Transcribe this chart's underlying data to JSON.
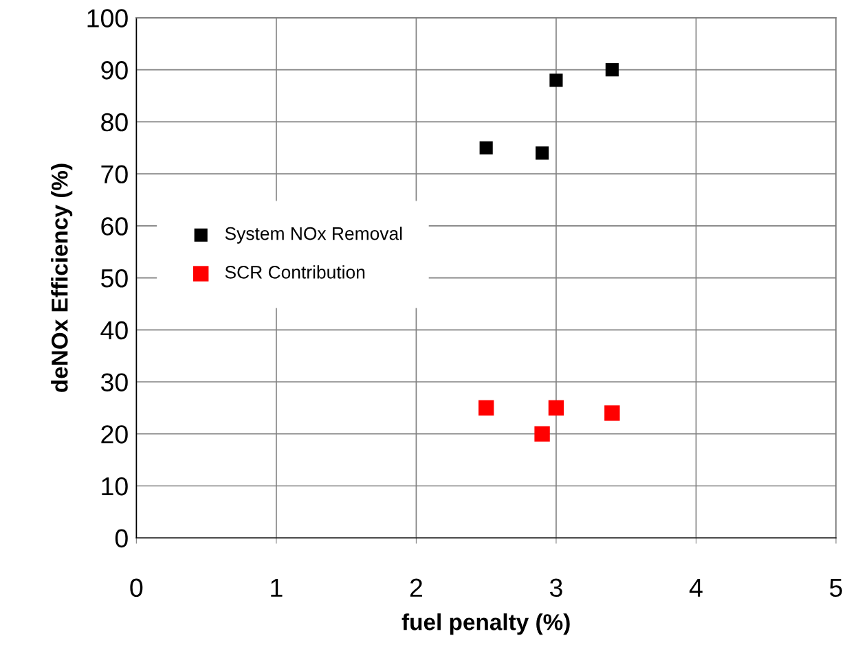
{
  "chart_data": {
    "type": "scatter",
    "xlabel": "fuel penalty (%)",
    "ylabel": "deNOx Efficiency (%)",
    "xlim": [
      0,
      5
    ],
    "xticks": [
      0,
      1,
      2,
      3,
      4,
      5
    ],
    "ylim": [
      0,
      100
    ],
    "yticks": [
      0,
      10,
      20,
      30,
      40,
      50,
      60,
      70,
      80,
      90,
      100
    ],
    "grid": true,
    "legend": "left",
    "marker": "square",
    "series": [
      {
        "name": "System NOx Removal",
        "color": "#000000",
        "x": [
          2.5,
          2.9,
          3.0,
          3.4
        ],
        "values": [
          75,
          74,
          88,
          90
        ]
      },
      {
        "name": "SCR Contribution",
        "color": "#ff0000",
        "x": [
          2.5,
          2.9,
          3.0,
          3.4
        ],
        "values": [
          25,
          20,
          25,
          24
        ]
      }
    ]
  }
}
